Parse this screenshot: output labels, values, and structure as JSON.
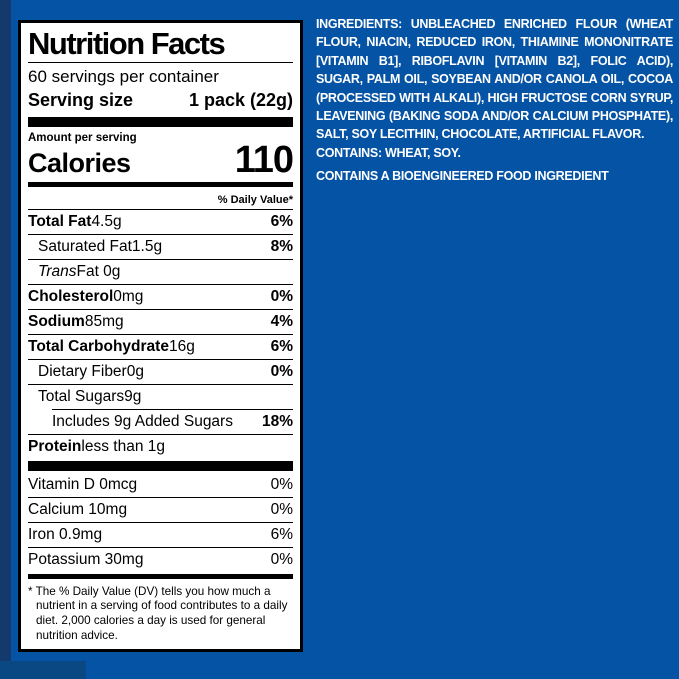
{
  "page": {
    "background_color": "#0553A4",
    "edge_strip_color": "#143A6D",
    "label_bg_color": "#FFFFFF",
    "label_border_color": "#000000",
    "ingredients_text_color": "#FFFFFF"
  },
  "label": {
    "title": "Nutrition Facts",
    "servings_per_container": "60 servings per container",
    "serving_size_label": "Serving size",
    "serving_size_value": "1 pack (22g)",
    "amount_per_serving": "Amount per serving",
    "calories_label": "Calories",
    "calories_value": "110",
    "daily_value_header": "% Daily Value*",
    "nutrients": [
      {
        "name": "Total Fat",
        "rest": " 4.5g",
        "value": "6%",
        "nameBold": true,
        "valueBold": true,
        "indent": 0
      },
      {
        "name": "Saturated Fat",
        "rest": " 1.5g",
        "value": "8%",
        "nameBold": false,
        "valueBold": true,
        "indent": 10
      },
      {
        "name": "Trans",
        "rest": " Fat 0g",
        "value": "",
        "nameBold": false,
        "nameItalic": true,
        "indent": 10
      },
      {
        "name": "Cholesterol",
        "rest": " 0mg",
        "value": "0%",
        "nameBold": true,
        "valueBold": true,
        "indent": 0
      },
      {
        "name": "Sodium",
        "rest": " 85mg",
        "value": "4%",
        "nameBold": true,
        "valueBold": true,
        "indent": 0
      },
      {
        "name": "Total Carbohydrate",
        "rest": " 16g",
        "value": "6%",
        "nameBold": true,
        "valueBold": true,
        "indent": 0
      },
      {
        "name": "Dietary Fiber",
        "rest": " 0g",
        "value": "0%",
        "nameBold": false,
        "valueBold": true,
        "indent": 10
      },
      {
        "name": "Total Sugars",
        "rest": " 9g",
        "value": "",
        "nameBold": false,
        "indent": 10
      },
      {
        "name": "Includes 9g Added Sugars",
        "rest": "",
        "value": "18%",
        "nameBold": false,
        "valueBold": true,
        "indent": 24,
        "ruleIndent": 24
      },
      {
        "name": "Protein",
        "rest": " less than 1g",
        "value": "",
        "nameBold": true,
        "indent": 0
      }
    ],
    "vitamins": [
      {
        "name": "Vitamin D 0mcg",
        "rest": "",
        "value": "0%",
        "noRule": true
      },
      {
        "name": "Calcium 10mg",
        "rest": "",
        "value": "0%"
      },
      {
        "name": "Iron 0.9mg",
        "rest": "",
        "value": "6%"
      },
      {
        "name": "Potassium 30mg",
        "rest": "",
        "value": "0%"
      }
    ],
    "footnote": "* The % Daily Value (DV) tells you how much a nutrient in a serving of food contributes to a daily diet. 2,000 calories a day is used for general nutrition advice."
  },
  "ingredients": {
    "main": "INGREDIENTS: UNBLEACHED ENRICHED FLOUR (WHEAT FLOUR, NIACIN, REDUCED IRON, THIAMINE MONONITRATE [VITAMIN B1], RIBOFLAVIN [VITAMIN B2], FOLIC ACID), SUGAR, PALM OIL, SOYBEAN AND/OR CANOLA OIL, COCOA (PROCESSED WITH ALKALI), HIGH FRUCTOSE CORN SYRUP, LEAVENING (BAKING SODA AND/OR CALCIUM PHOSPHATE), SALT, SOY LECITHIN, CHOCOLATE, ARTIFICIAL FLAVOR.",
    "contains": "CONTAINS: WHEAT, SOY.",
    "bioengineered": "CONTAINS A BIOENGINEERED FOOD INGREDIENT"
  }
}
